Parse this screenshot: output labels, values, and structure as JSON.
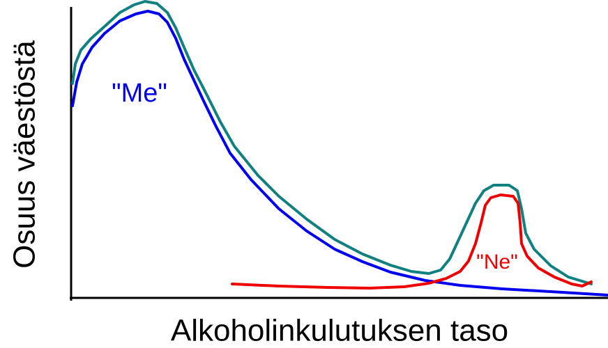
{
  "y_axis_label": "Osuus väestöstä",
  "x_axis_label": "Alkoholinkulutuksen taso",
  "annotations": {
    "me": "\"Me\"",
    "ne": "\"Ne\""
  }
}
